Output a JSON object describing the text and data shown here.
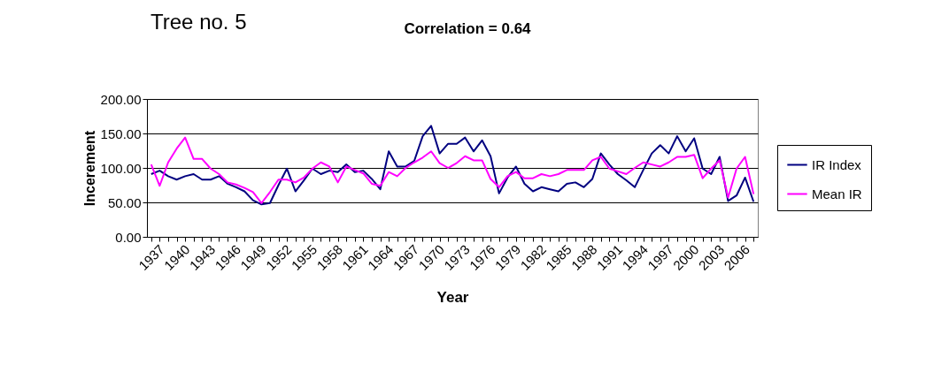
{
  "chart_data": {
    "type": "line",
    "title": "Tree no. 5",
    "subtitle": "Correlation = 0.64",
    "xlabel": "Year",
    "ylabel": "Incerement",
    "categories": [
      "1937",
      null,
      null,
      "1940",
      null,
      null,
      "1943",
      null,
      null,
      "1946",
      null,
      null,
      "1949",
      null,
      null,
      "1952",
      null,
      null,
      "1955",
      null,
      null,
      "1958",
      null,
      null,
      "1961",
      null,
      null,
      "1964",
      null,
      null,
      "1967",
      null,
      null,
      "1970",
      null,
      null,
      "1973",
      null,
      null,
      "1976",
      null,
      null,
      "1979",
      null,
      null,
      "1982",
      null,
      null,
      "1985",
      null,
      null,
      "1988",
      null,
      null,
      "1991",
      null,
      null,
      "1994",
      null,
      null,
      "1997",
      null,
      null,
      "2000",
      null,
      null,
      "2003",
      null,
      null,
      "2006",
      null,
      null
    ],
    "series": [
      {
        "name": "IR Index",
        "color": "#000080",
        "values": [
          91,
          96,
          88,
          83,
          88,
          91,
          83,
          83,
          88,
          77,
          72,
          66,
          53,
          47,
          49,
          75,
          99,
          66,
          82,
          99,
          91,
          96,
          94,
          105,
          94,
          96,
          84,
          69,
          124,
          102,
          102,
          110,
          146,
          161,
          121,
          135,
          135,
          144,
          124,
          140,
          117,
          63,
          86,
          102,
          77,
          66,
          72,
          69,
          66,
          77,
          79,
          72,
          84,
          121,
          105,
          91,
          82,
          72,
          97,
          121,
          133,
          121,
          146,
          124,
          143,
          99,
          91,
          116,
          52,
          60,
          86,
          51
        ]
      },
      {
        "name": "Mean IR",
        "color": "#ff00ff",
        "values": [
          105,
          74,
          108,
          128,
          144,
          113,
          113,
          99,
          91,
          79,
          76,
          71,
          65,
          49,
          65,
          83,
          83,
          79,
          86,
          99,
          108,
          102,
          79,
          102,
          97,
          92,
          77,
          74,
          94,
          88,
          100,
          108,
          115,
          124,
          107,
          100,
          107,
          117,
          111,
          111,
          84,
          72,
          88,
          94,
          85,
          85,
          91,
          88,
          91,
          97,
          97,
          97,
          111,
          116,
          99,
          95,
          91,
          100,
          108,
          105,
          102,
          108,
          116,
          116,
          119,
          85,
          99,
          111,
          57,
          99,
          116,
          62
        ]
      }
    ],
    "ylim": [
      0,
      200
    ],
    "yticks": [
      {
        "value": 0,
        "label": "0.00"
      },
      {
        "value": 50,
        "label": "50.00"
      },
      {
        "value": 100,
        "label": "100.00"
      },
      {
        "value": 150,
        "label": "150.00"
      },
      {
        "value": 200,
        "label": "200.00"
      }
    ],
    "grid": "y",
    "legend": "right",
    "marker": "none",
    "line_style": "solid"
  }
}
